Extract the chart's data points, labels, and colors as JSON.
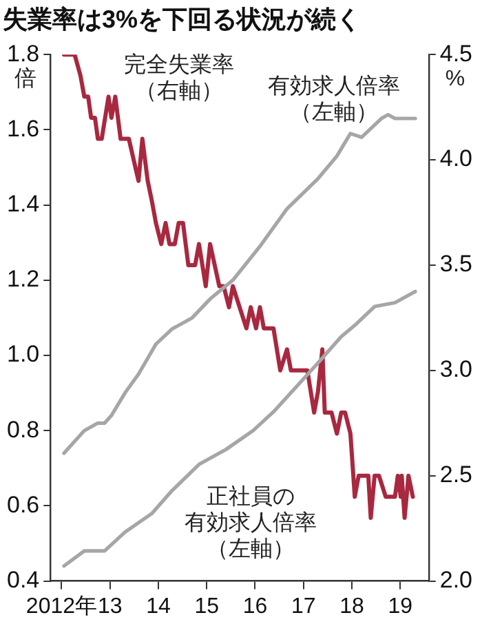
{
  "chart_data": {
    "type": "line",
    "title": "失業率は3%を下回る状況が続く",
    "ylabel": "倍",
    "y2label": "%",
    "xlim": [
      2011.77,
      2019.59
    ],
    "xticks": [
      {
        "value": 2012,
        "label": "2012年"
      },
      {
        "value": 2013,
        "label": "13"
      },
      {
        "value": 2014,
        "label": "14"
      },
      {
        "value": 2015,
        "label": "15"
      },
      {
        "value": 2016,
        "label": "16"
      },
      {
        "value": 2017,
        "label": "17"
      },
      {
        "value": 2018,
        "label": "18"
      },
      {
        "value": 2019,
        "label": "19"
      }
    ],
    "ylim": [
      0.4,
      1.8
    ],
    "yticks": [
      0.4,
      0.6,
      0.8,
      {
        "value": 1,
        "label": "1.0"
      },
      1.2,
      1.4,
      1.6,
      1.8
    ],
    "y2lim": [
      2,
      4.5
    ],
    "y2ticks": [
      {
        "value": 2,
        "label": "2.0"
      },
      2.5,
      {
        "value": 3,
        "label": "3.0"
      },
      3.5,
      {
        "value": 4,
        "label": "4.0"
      },
      4.5
    ],
    "grid": false,
    "legend": false,
    "marker": "none",
    "line_style": "solid",
    "series": [
      {
        "name": "完全失業率（右軸）",
        "color": "#a8283f",
        "axis": "y2",
        "x": [
          2012.05,
          2012.27,
          2012.39,
          2012.47,
          2012.55,
          2012.61,
          2012.69,
          2012.75,
          2012.83,
          2012.97,
          2013.03,
          2013.11,
          2013.22,
          2013.39,
          2013.59,
          2013.67,
          2013.78,
          2013.87,
          2013.95,
          2014.06,
          2014.15,
          2014.23,
          2014.34,
          2014.42,
          2014.51,
          2014.62,
          2014.76,
          2014.84,
          2014.98,
          2015.07,
          2015.26,
          2015.35,
          2015.46,
          2015.54,
          2015.68,
          2015.82,
          2015.91,
          2016.02,
          2016.1,
          2016.18,
          2016.38,
          2016.52,
          2016.66,
          2016.74,
          2017.08,
          2017.22,
          2017.3,
          2017.39,
          2017.44,
          2017.5,
          2017.58,
          2017.69,
          2017.78,
          2017.86,
          2017.97,
          2018.06,
          2018.14,
          2018.34,
          2018.39,
          2018.47,
          2018.56,
          2018.7,
          2018.89,
          2018.95,
          2019.01,
          2019.03,
          2019.09,
          2019.17,
          2019.26
        ],
        "values": [
          4.5,
          4.5,
          4.4,
          4.3,
          4.3,
          4.2,
          4.2,
          4.1,
          4.1,
          4.3,
          4.2,
          4.3,
          4.1,
          4.1,
          3.9,
          4.1,
          3.9,
          3.8,
          3.7,
          3.6,
          3.7,
          3.6,
          3.6,
          3.7,
          3.7,
          3.5,
          3.5,
          3.6,
          3.4,
          3.6,
          3.4,
          3.4,
          3.3,
          3.4,
          3.3,
          3.2,
          3.3,
          3.2,
          3.3,
          3.2,
          3.2,
          3.0,
          3.1,
          3.0,
          3.0,
          2.8,
          2.9,
          3.1,
          2.8,
          2.8,
          2.8,
          2.7,
          2.8,
          2.8,
          2.7,
          2.4,
          2.5,
          2.5,
          2.3,
          2.5,
          2.5,
          2.4,
          2.4,
          2.5,
          2.4,
          2.5,
          2.3,
          2.5,
          2.4
        ]
      },
      {
        "name": "有効求人倍率（左軸）",
        "color": "#a6a6a6",
        "x": [
          2012.05,
          2012.19,
          2012.47,
          2012.75,
          2012.89,
          2013.03,
          2013.31,
          2013.59,
          2013.95,
          2014.28,
          2014.7,
          2015.07,
          2015.54,
          2016.1,
          2016.66,
          2017.3,
          2017.69,
          2017.97,
          2018.2,
          2018.61,
          2018.75,
          2018.89,
          2019.31
        ],
        "values": [
          0.74,
          0.76,
          0.8,
          0.82,
          0.82,
          0.84,
          0.9,
          0.95,
          1.03,
          1.07,
          1.1,
          1.15,
          1.2,
          1.29,
          1.39,
          1.47,
          1.53,
          1.59,
          1.58,
          1.63,
          1.64,
          1.63,
          1.63
        ]
      },
      {
        "name": "正社員の有効求人倍率（左軸）",
        "color": "#a6a6a6",
        "x": [
          2012.05,
          2012.47,
          2012.89,
          2013.31,
          2013.87,
          2014.28,
          2014.84,
          2015.4,
          2015.96,
          2016.38,
          2017.3,
          2017.78,
          2018.06,
          2018.47,
          2018.89,
          2019.31
        ],
        "values": [
          0.44,
          0.48,
          0.48,
          0.53,
          0.58,
          0.64,
          0.71,
          0.75,
          0.8,
          0.85,
          0.98,
          1.05,
          1.08,
          1.13,
          1.14,
          1.17
        ]
      }
    ]
  }
}
